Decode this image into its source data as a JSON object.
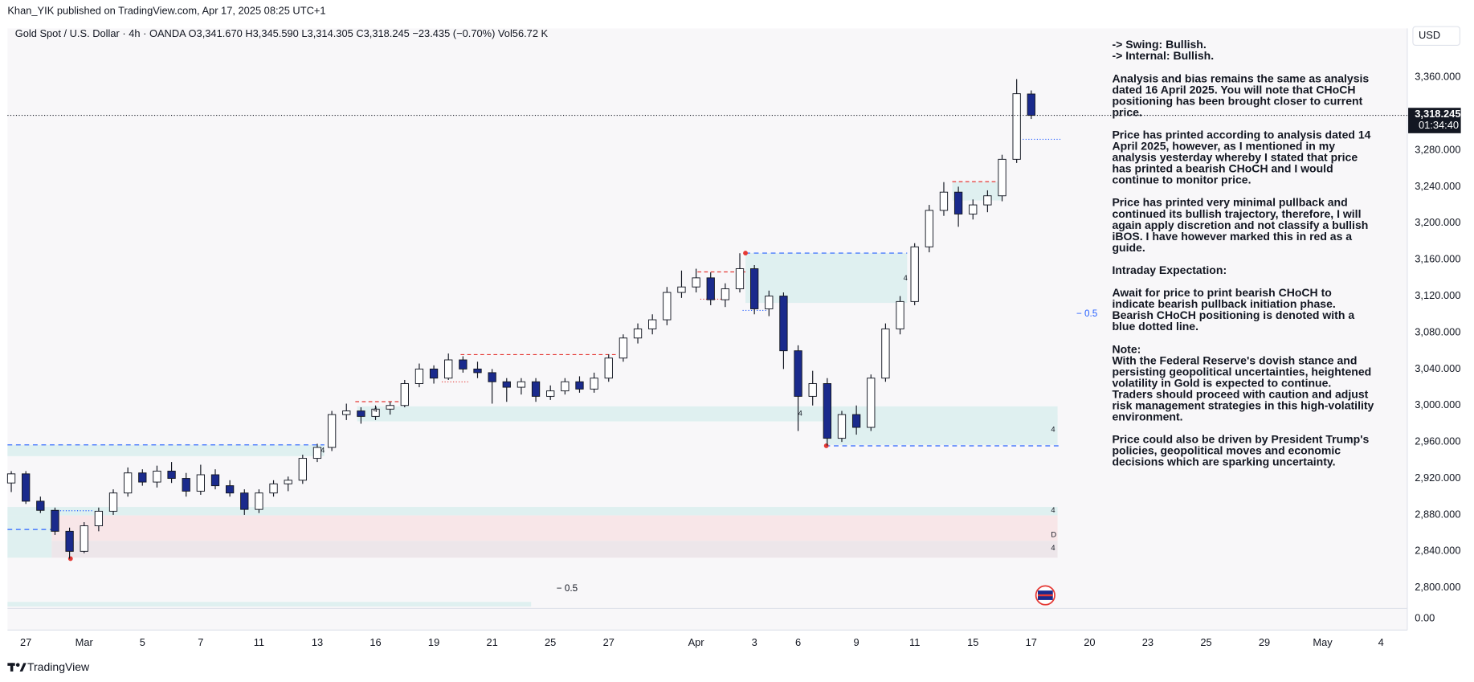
{
  "chart_data": {
    "type": "candlestick",
    "publisher_line": "Khan_YIK published on TradingView.com, Apr 17, 2025 08:25 UTC+1",
    "symbol_line": "Gold Spot / U.S. Dollar · 4h · OANDA  O3,341.670  H3,345.590  L3,314.305  C3,318.245  −23.435 (−0.70%)  Vol56.72 K",
    "currency": "USD",
    "last_price_label": "3,318.245",
    "countdown": "01:34:40",
    "lower_pane_label": "0.00",
    "brand": "TradingView",
    "up_color": "#ffffff",
    "down_color": "#1a2a8c",
    "grid": false,
    "ylim": [
      2779.4,
      3413.6
    ],
    "yticks": [
      {
        "value": 3360,
        "label": "3,360.000"
      },
      {
        "value": 3280,
        "label": "3,280.000"
      },
      {
        "value": 3240,
        "label": "3,240.000"
      },
      {
        "value": 3200,
        "label": "3,200.000"
      },
      {
        "value": 3160,
        "label": "3,160.000"
      },
      {
        "value": 3120,
        "label": "3,120.000"
      },
      {
        "value": 3080,
        "label": "3,080.000"
      },
      {
        "value": 3040,
        "label": "3,040.000"
      },
      {
        "value": 3000,
        "label": "3,000.000"
      },
      {
        "value": 2960,
        "label": "2,960.000"
      },
      {
        "value": 2920,
        "label": "2,920.000"
      },
      {
        "value": 2880,
        "label": "2,880.000"
      },
      {
        "value": 2840,
        "label": "2,840.000"
      },
      {
        "value": 2800,
        "label": "2,800.000"
      }
    ],
    "categories": [
      null,
      "27",
      null,
      null,
      null,
      "Mar",
      null,
      null,
      null,
      "5",
      null,
      null,
      null,
      "7",
      null,
      null,
      null,
      "11",
      null,
      null,
      null,
      "13",
      null,
      null,
      null,
      "16",
      null,
      null,
      null,
      "19",
      null,
      null,
      null,
      "21",
      null,
      null,
      null,
      "25",
      null,
      null,
      null,
      "27",
      null,
      null,
      null,
      null,
      null,
      "Apr",
      null,
      null,
      null,
      "3",
      null,
      null,
      "6",
      null,
      null,
      null,
      "9",
      null,
      null,
      null,
      "11",
      null,
      null,
      null,
      "15",
      null,
      null,
      null,
      "17",
      null,
      null,
      null,
      "20",
      null,
      null,
      null,
      "23",
      null,
      null,
      null,
      "25",
      null,
      null,
      null,
      "29",
      null,
      null,
      null,
      "May",
      null,
      null,
      null,
      "4",
      null
    ],
    "open": [
      2915,
      2925,
      2895,
      2885,
      2862,
      2840,
      2868,
      2884,
      2904,
      2926,
      2916,
      2928,
      2920,
      2906,
      2924,
      2912,
      2904,
      2886,
      2904,
      2914,
      2918,
      2942,
      2954,
      2990,
      2994,
      2988,
      2996,
      3000,
      3024,
      3040,
      3030,
      3050,
      3040,
      3036,
      3026,
      3020,
      3026,
      3010,
      3016,
      3026,
      3018,
      3030,
      3052,
      3074,
      3084,
      3094,
      3124,
      3130,
      3140,
      3116,
      3128,
      3150,
      3106,
      3120,
      3060,
      3010,
      3024,
      2964,
      2990,
      2976,
      3030,
      3084,
      3114,
      3174,
      3214,
      3234,
      3210,
      3220,
      3230,
      3270,
      3341.67,
      null,
      null,
      null,
      null,
      null,
      null,
      null,
      null,
      null,
      null,
      null,
      null,
      null,
      null,
      null,
      null,
      null,
      null,
      null,
      null,
      null,
      null,
      null,
      null,
      null
    ],
    "high": [
      2928,
      2928,
      2900,
      2888,
      2866,
      2872,
      2888,
      2908,
      2932,
      2930,
      2934,
      2938,
      2926,
      2935,
      2930,
      2918,
      2908,
      2908,
      2918,
      2922,
      2946,
      2958,
      2994,
      3002,
      2998,
      3000,
      3004,
      3028,
      3046,
      3044,
      3057,
      3054,
      3048,
      3040,
      3030,
      3030,
      3030,
      3022,
      3030,
      3032,
      3036,
      3056,
      3078,
      3090,
      3100,
      3130,
      3148,
      3150,
      3146,
      3134,
      3167,
      3154,
      3126,
      3124,
      3066,
      3038,
      3030,
      2994,
      3000,
      3034,
      3090,
      3120,
      3178,
      3220,
      3245,
      3240,
      3226,
      3236,
      3275,
      3358,
      3345.59,
      null,
      null,
      null,
      null,
      null,
      null,
      null,
      null,
      null,
      null,
      null,
      null,
      null,
      null,
      null,
      null,
      null,
      null,
      null,
      null,
      null,
      null,
      null,
      null,
      null
    ],
    "low": [
      2905,
      2892,
      2882,
      2858,
      2832,
      2838,
      2862,
      2880,
      2900,
      2912,
      2910,
      2915,
      2900,
      2902,
      2908,
      2900,
      2880,
      2882,
      2900,
      2906,
      2914,
      2938,
      2950,
      2984,
      2980,
      2984,
      2990,
      2998,
      3020,
      3024,
      3028,
      3036,
      3030,
      3002,
      3004,
      3012,
      3004,
      3006,
      3012,
      3014,
      3014,
      3026,
      3048,
      3068,
      3078,
      3088,
      3118,
      3124,
      3110,
      3108,
      3124,
      3100,
      3098,
      3040,
      2972,
      3000,
      2956,
      2960,
      2968,
      2972,
      3026,
      3078,
      3110,
      3168,
      3208,
      3196,
      3204,
      3212,
      3224,
      3266,
      3314.305,
      null,
      null,
      null,
      null,
      null,
      null,
      null,
      null,
      null,
      null,
      null,
      null,
      null,
      null,
      null,
      null,
      null,
      null,
      null,
      null,
      null,
      null,
      null,
      null,
      null
    ],
    "close": [
      2925,
      2895,
      2885,
      2862,
      2840,
      2868,
      2884,
      2904,
      2926,
      2916,
      2928,
      2920,
      2906,
      2924,
      2912,
      2904,
      2886,
      2904,
      2914,
      2918,
      2942,
      2954,
      2990,
      2994,
      2988,
      2996,
      3000,
      3024,
      3040,
      3030,
      3050,
      3040,
      3036,
      3026,
      3020,
      3026,
      3010,
      3016,
      3026,
      3018,
      3030,
      3052,
      3074,
      3084,
      3094,
      3124,
      3130,
      3140,
      3116,
      3128,
      3150,
      3106,
      3120,
      3060,
      3010,
      3024,
      2964,
      2990,
      2976,
      3030,
      3084,
      3114,
      3174,
      3214,
      3234,
      3210,
      3220,
      3230,
      3270,
      3342,
      3318.245,
      null,
      null,
      null,
      null,
      null,
      null,
      null,
      null,
      null,
      null,
      null,
      null,
      null,
      null,
      null,
      null,
      null,
      null,
      null,
      null,
      null,
      null,
      null,
      null,
      null
    ],
    "chart_labels": [
      "− 0.5",
      "− 0.5",
      "4",
      "4",
      "D",
      "4",
      "4",
      "4",
      "4",
      "4"
    ],
    "notes": [
      [
        "-> Swing:  Bullish.",
        "-> Internal:  Bullish."
      ],
      [
        "Analysis and bias remains the same as analysis",
        "dated 16 April 2025. You will note that CHoCH",
        "positioning has been brought closer to current",
        "price."
      ],
      [
        "Price has printed according to analysis dated 14",
        "April 2025, however, as I mentioned in my",
        "analysis yesterday whereby I stated that price",
        "has printed a bearish CHoCH and I would",
        "continue to monitor price."
      ],
      [
        "Price has printed very minimal pullback and",
        "continued its bullish trajectory, therefore, I will",
        "again apply discretion and not classify a bullish",
        "iBOS.  I have however marked this in red as a",
        "guide."
      ],
      [
        "Intraday Expectation:"
      ],
      [
        "Await for price to print bearish CHoCH to",
        "indicate bearish pullback initiation phase.",
        "Bearish CHoCH positioning is denoted with a",
        "blue dotted line."
      ],
      [
        "Note:",
        "With the Federal Reserve's dovish stance and",
        "persisting geopolitical uncertainties, heightened",
        "volatility in Gold is expected to continue.",
        "Traders should proceed with caution and adjust",
        "risk management strategies in this high-volatility",
        "environment."
      ],
      [
        "Price could also be driven by President Trump's",
        "policies, geopolitical moves and economic",
        "decisions which are sparking uncertainty."
      ]
    ]
  }
}
